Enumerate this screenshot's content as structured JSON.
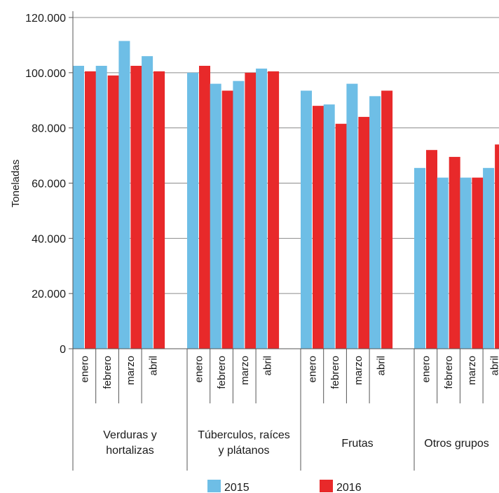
{
  "chart_data": {
    "type": "bar",
    "ylabel": "Toneladas",
    "ylim": [
      0,
      120000
    ],
    "yticks": [
      "0",
      "20.000",
      "40.000",
      "60.000",
      "80.000",
      "100.000",
      "120.000"
    ],
    "ytick_values": [
      0,
      20000,
      40000,
      60000,
      80000,
      100000,
      120000
    ],
    "grid": true,
    "legend_position": "bottom",
    "groups": [
      {
        "label": [
          "Verduras y",
          "hortalizas"
        ],
        "months": [
          "enero",
          "febrero",
          "marzo",
          "abril"
        ]
      },
      {
        "label": [
          "Túberculos, raíces",
          "y plátanos"
        ],
        "months": [
          "enero",
          "febrero",
          "marzo",
          "abril"
        ]
      },
      {
        "label": [
          "Frutas"
        ],
        "months": [
          "enero",
          "febrero",
          "marzo",
          "abril"
        ]
      },
      {
        "label": [
          "Otros grupos"
        ],
        "months": [
          "enero",
          "febrero",
          "marzo",
          "abril"
        ]
      }
    ],
    "series": [
      {
        "name": "2015",
        "color": "#6ebee6",
        "values": [
          102500,
          102500,
          111500,
          106000,
          100000,
          96000,
          97000,
          101500,
          93500,
          88500,
          96000,
          91500,
          65500,
          62000,
          62000,
          65500
        ]
      },
      {
        "name": "2016",
        "color": "#e8292a",
        "values": [
          100500,
          99000,
          102500,
          100500,
          102500,
          93500,
          100000,
          100500,
          88000,
          81500,
          84000,
          93500,
          72000,
          69500,
          62000,
          74000
        ]
      }
    ]
  }
}
